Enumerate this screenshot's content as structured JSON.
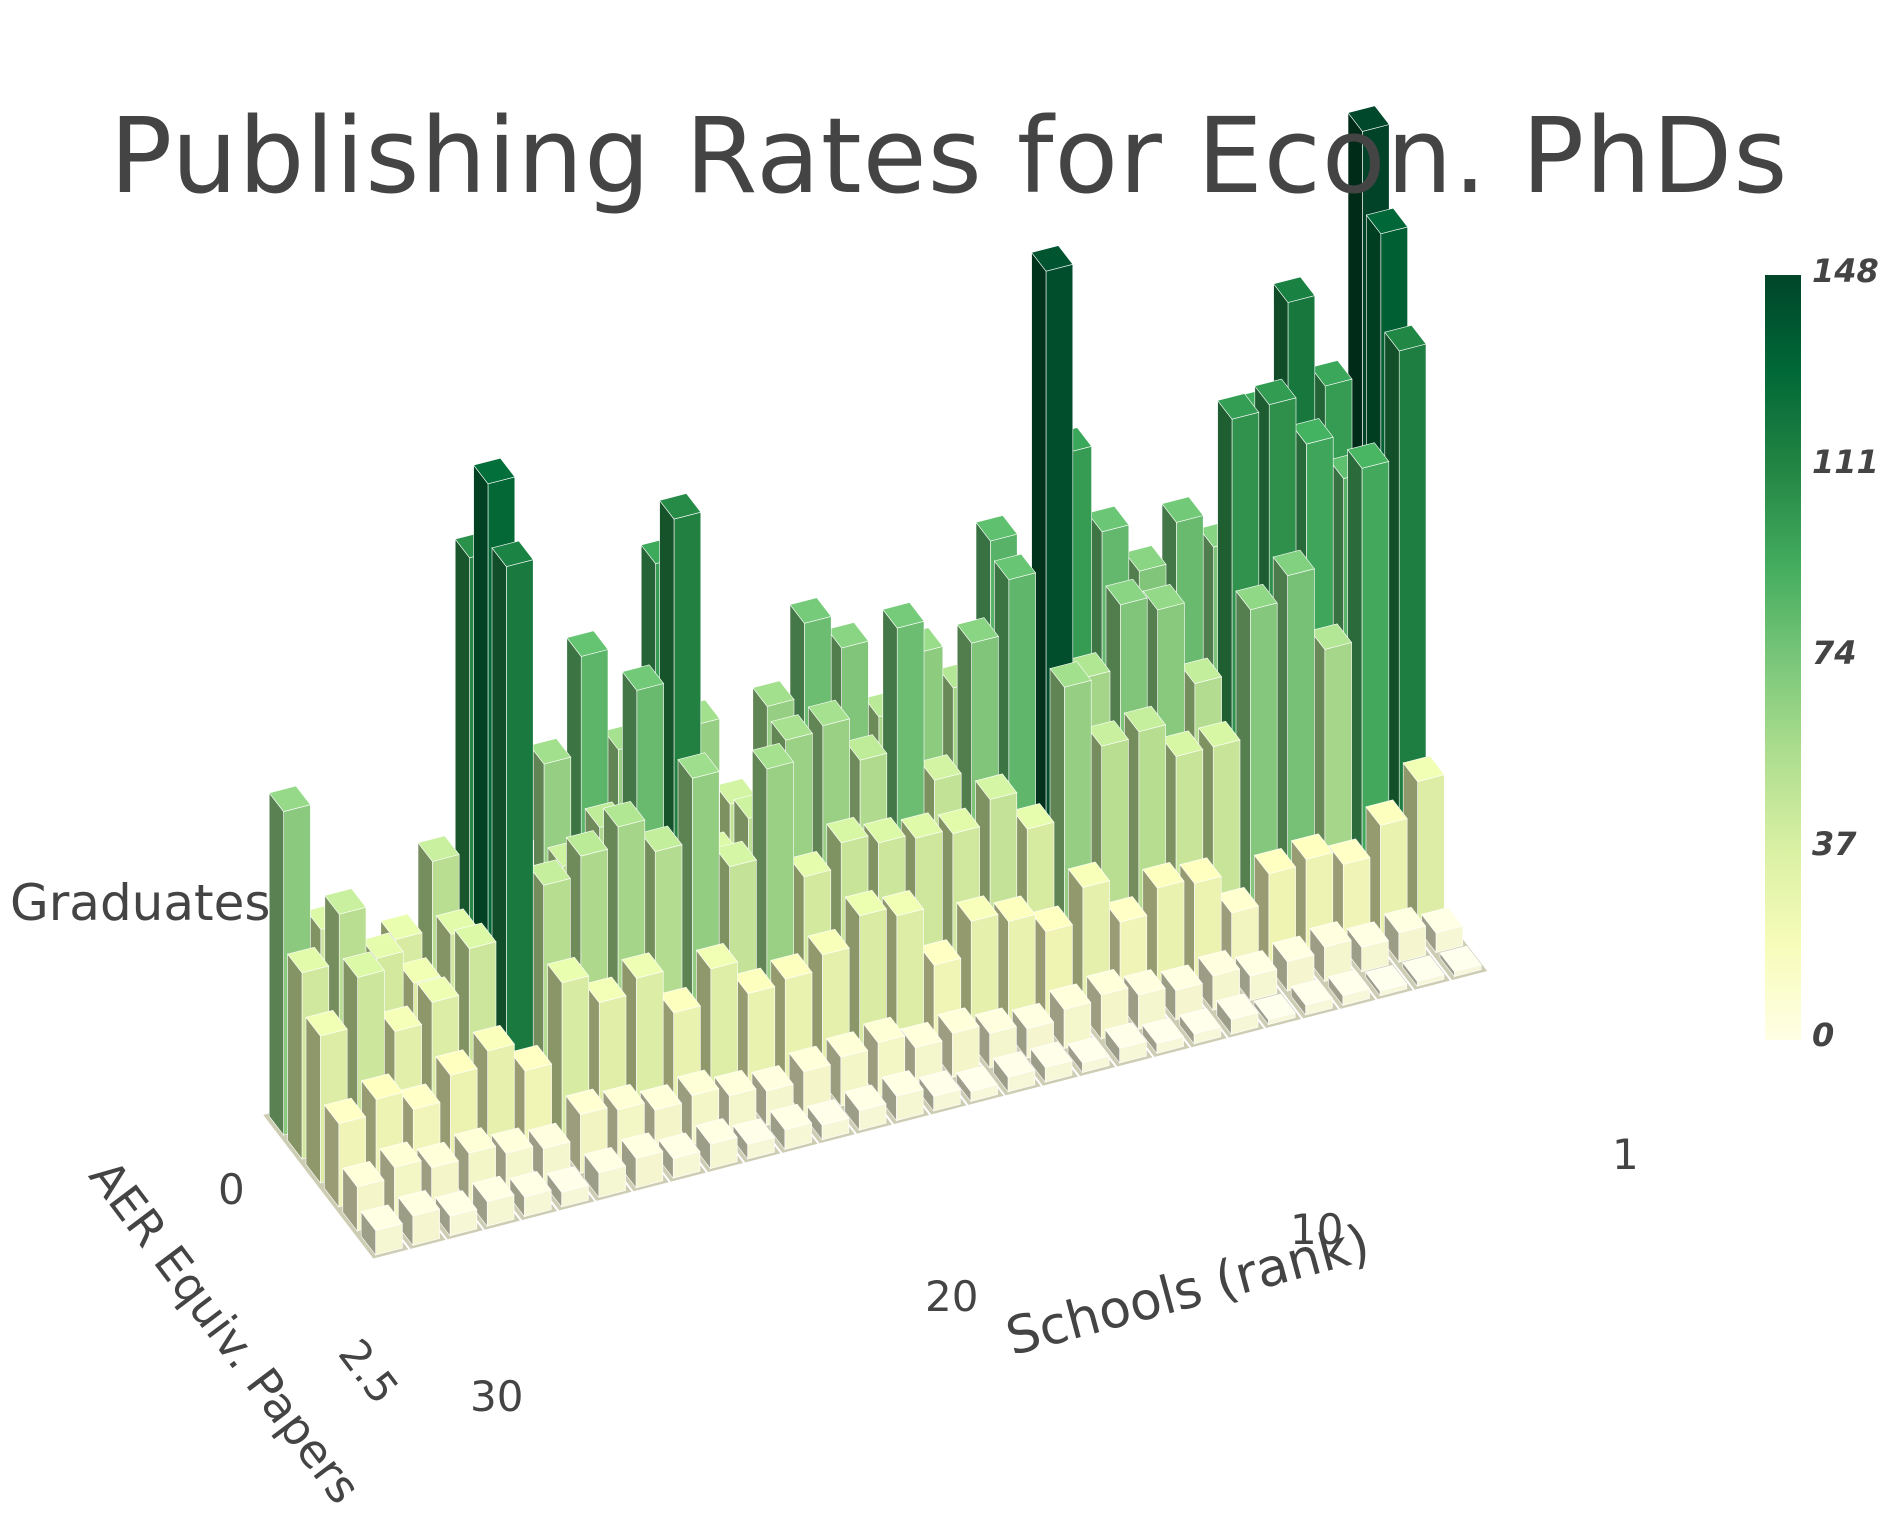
{
  "chart_data": {
    "type": "bar3d",
    "title": "Publishing Rates for Econ. PhDs",
    "xlabel": "Schools (rank)",
    "ylabel": "AER Equiv. Papers",
    "zlabel": "Graduates",
    "x_ticks": [
      "1",
      "10",
      "20",
      "30"
    ],
    "y_ticks": [
      "0",
      "2.5"
    ],
    "colorbar": {
      "ticks": [
        "148",
        "111",
        "74",
        "37",
        "0"
      ],
      "min": 0,
      "max": 148,
      "colors": [
        "#ffffe5",
        "#f7fcb9",
        "#d9f0a3",
        "#addd8e",
        "#78c679",
        "#41ab5d",
        "#238443",
        "#006837",
        "#004529"
      ]
    },
    "depth_rows": [
      0,
      0.5,
      1,
      1.5,
      2,
      2.5
    ],
    "schools": [
      30,
      29,
      28,
      27,
      26,
      25,
      24,
      23,
      22,
      21,
      20,
      19,
      18,
      17,
      16,
      15,
      14,
      13,
      12,
      11,
      10,
      9,
      8,
      7,
      6,
      5,
      4,
      3,
      2,
      1
    ],
    "values_by_row": [
      [
        66,
        40,
        14,
        34,
        48,
        108,
        47,
        62,
        82,
        61,
        97,
        62,
        44,
        62,
        77,
        70,
        54,
        65,
        56,
        84,
        63,
        98,
        80,
        70,
        78,
        71,
        96,
        117,
        98,
        148
      ],
      [
        38,
        48,
        37,
        30,
        38,
        128,
        33,
        46,
        52,
        78,
        111,
        40,
        46,
        60,
        61,
        52,
        77,
        44,
        70,
        81,
        142,
        57,
        70,
        67,
        50,
        102,
        103,
        93,
        84,
        132
      ],
      [
        30,
        40,
        27,
        31,
        40,
        116,
        49,
        53,
        57,
        50,
        63,
        43,
        61,
        37,
        42,
        40,
        39,
        38,
        43,
        35,
        62,
        48,
        49,
        42,
        42,
        68,
        73,
        56,
        91,
        113
      ],
      [
        17,
        20,
        16,
        21,
        24,
        18,
        34,
        28,
        31,
        22,
        29,
        22,
        23,
        26,
        32,
        30,
        18,
        25,
        23,
        19,
        26,
        17,
        22,
        21,
        13,
        19,
        20,
        17,
        23,
        30
      ],
      [
        9,
        11,
        9,
        10,
        8,
        7,
        12,
        11,
        9,
        10,
        8,
        7,
        9,
        10,
        11,
        8,
        9,
        7,
        6,
        8,
        9,
        7,
        6,
        7,
        5,
        6,
        7,
        5,
        6,
        4
      ],
      [
        5,
        6,
        4,
        5,
        4,
        3,
        5,
        6,
        4,
        5,
        3,
        4,
        3,
        4,
        5,
        3,
        2,
        3,
        3,
        2,
        3,
        2,
        2,
        3,
        1,
        2,
        2,
        1,
        1,
        1
      ]
    ]
  }
}
